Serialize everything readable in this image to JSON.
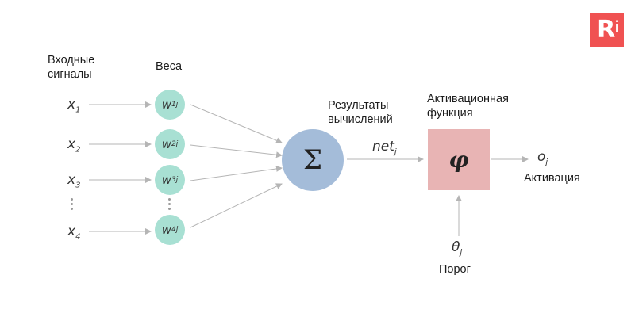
{
  "logo": {
    "text": "R",
    "sup": "i"
  },
  "labels": {
    "input_signals_line1": "Входные",
    "input_signals_line2": "сигналы",
    "weights": "Веса",
    "results_line1": "Результаты",
    "results_line2": "вычислений",
    "activation_function_line1": "Активационная",
    "activation_function_line2": "функция",
    "activation": "Активация",
    "threshold": "Порог"
  },
  "inputs": [
    {
      "base": "x",
      "sub": "1"
    },
    {
      "base": "x",
      "sub": "2"
    },
    {
      "base": "x",
      "sub": "3"
    },
    {
      "base": "x",
      "sub": "4"
    }
  ],
  "weights": [
    {
      "base": "w",
      "sub": "1j"
    },
    {
      "base": "w",
      "sub": "2j"
    },
    {
      "base": "w",
      "sub": "3j"
    },
    {
      "base": "w",
      "sub": "4j"
    }
  ],
  "sum_symbol": "Σ",
  "net": {
    "base": "net",
    "sub": "j"
  },
  "activation_symbol": "φ",
  "output": {
    "base": "o",
    "sub": "j"
  },
  "threshold_symbol": {
    "base": "θ",
    "sub": "j"
  },
  "colors": {
    "weight_node": "#a8e0d3",
    "sum_node": "#a4bcd9",
    "activation_box": "#e8b4b4",
    "arrow": "#b5b5b5",
    "logo": "#f05252"
  }
}
